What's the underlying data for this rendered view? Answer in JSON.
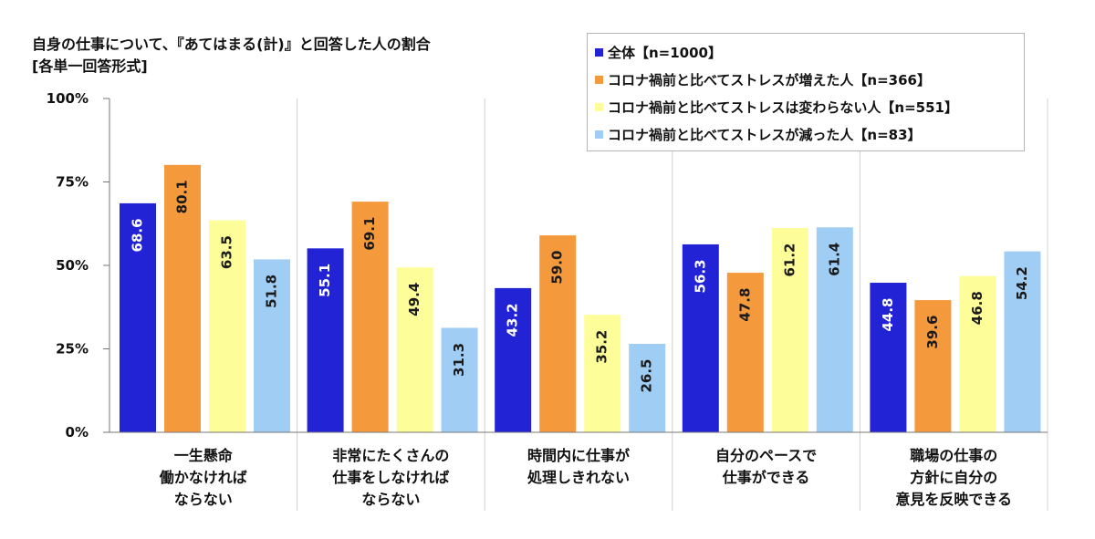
{
  "header": {
    "title": "自身の仕事について、『あてはまる(計)』と回答した人の割合",
    "subtitle": "[各単一回答形式]"
  },
  "chart_data": {
    "type": "bar",
    "categories": [
      [
        "一生懸命",
        "働かなければ",
        "ならない"
      ],
      [
        "非常にたくさんの",
        "仕事をしなければ",
        "ならない"
      ],
      [
        "時間内に仕事が",
        "処理しきれない"
      ],
      [
        "自分のペースで",
        "仕事ができる"
      ],
      [
        "職場の仕事の",
        "方針に自分の",
        "意見を反映できる"
      ]
    ],
    "series": [
      {
        "name": "全体【n=1000】",
        "color": "#2323d6",
        "label_color": "#ffffff",
        "values": [
          68.6,
          55.1,
          43.2,
          56.3,
          44.8
        ]
      },
      {
        "name": "コロナ禍前と比べてストレスが増えた人【n=366】",
        "color": "#f59a3c",
        "label_color": "#1a1a1a",
        "values": [
          80.1,
          69.1,
          59.0,
          47.8,
          39.6
        ]
      },
      {
        "name": "コロナ禍前と比べてストレスは変わらない人【n=551】",
        "color": "#fdfd9a",
        "label_color": "#1a1a1a",
        "values": [
          63.5,
          49.4,
          35.2,
          61.2,
          46.8
        ]
      },
      {
        "name": "コロナ禍前と比べてストレスが減った人【n=83】",
        "color": "#9fcdf3",
        "label_color": "#1a1a1a",
        "values": [
          51.8,
          31.3,
          26.5,
          61.4,
          54.2
        ]
      }
    ],
    "ylim": [
      0,
      100
    ],
    "yticks": [
      "0%",
      "25%",
      "50%",
      "75%",
      "100%"
    ],
    "grid": false,
    "legend_position": "top-right"
  }
}
